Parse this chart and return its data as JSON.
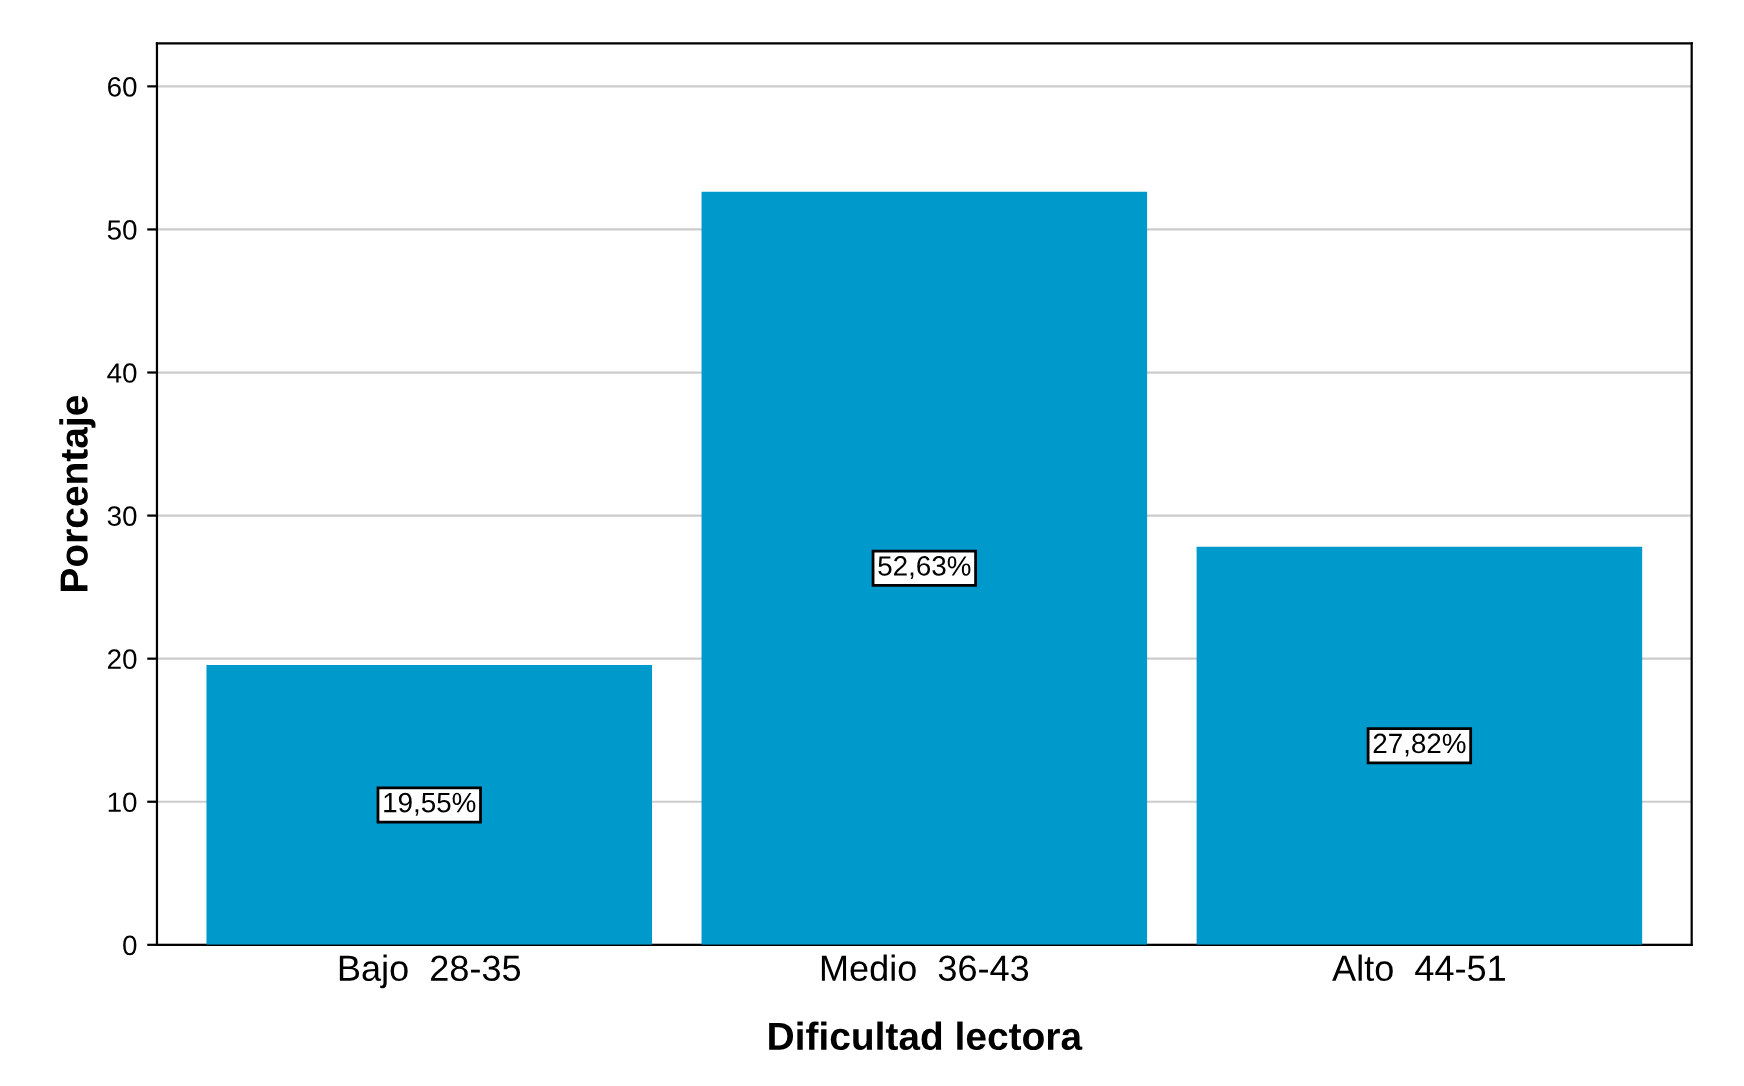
{
  "chart_data": {
    "type": "bar",
    "xlabel": "Dificultad lectora",
    "ylabel": "Porcentaje",
    "categories": [
      "Bajo  28-35",
      "Medio  36-43",
      "Alto  44-51"
    ],
    "values": [
      19.55,
      52.63,
      27.82
    ],
    "value_labels": [
      "19,55%",
      "52,63%",
      "27,82%"
    ],
    "color": "#0099cc",
    "ylim": [
      0,
      63
    ],
    "yticks": [
      0,
      10,
      20,
      30,
      40,
      50,
      60
    ],
    "grid": "y"
  }
}
